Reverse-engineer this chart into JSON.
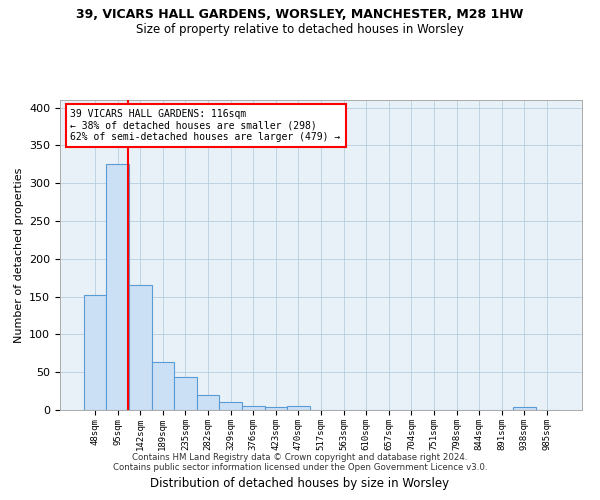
{
  "title_line1": "39, VICARS HALL GARDENS, WORSLEY, MANCHESTER, M28 1HW",
  "title_line2": "Size of property relative to detached houses in Worsley",
  "xlabel": "Distribution of detached houses by size in Worsley",
  "ylabel": "Number of detached properties",
  "bin_labels": [
    "48sqm",
    "95sqm",
    "142sqm",
    "189sqm",
    "235sqm",
    "282sqm",
    "329sqm",
    "376sqm",
    "423sqm",
    "470sqm",
    "517sqm",
    "563sqm",
    "610sqm",
    "657sqm",
    "704sqm",
    "751sqm",
    "798sqm",
    "844sqm",
    "891sqm",
    "938sqm",
    "985sqm"
  ],
  "bar_heights": [
    152,
    325,
    165,
    63,
    43,
    20,
    10,
    5,
    4,
    5,
    0,
    0,
    0,
    0,
    0,
    0,
    0,
    0,
    0,
    4,
    0
  ],
  "bar_color": "#cce0f5",
  "bar_edge_color": "#5b9bd5",
  "property_line_x": 1.46,
  "property_line_color": "#ff0000",
  "annotation_text": "39 VICARS HALL GARDENS: 116sqm\n← 38% of detached houses are smaller (298)\n62% of semi-detached houses are larger (479) →",
  "annotation_box_color": "#ffffff",
  "annotation_box_edge": "#ff0000",
  "ylim": [
    0,
    410
  ],
  "yticks": [
    0,
    50,
    100,
    150,
    200,
    250,
    300,
    350,
    400
  ],
  "grid_color": "#b8cfe0",
  "background_color": "#e8f0f8",
  "footer_line1": "Contains HM Land Registry data © Crown copyright and database right 2024.",
  "footer_line2": "Contains public sector information licensed under the Open Government Licence v3.0."
}
